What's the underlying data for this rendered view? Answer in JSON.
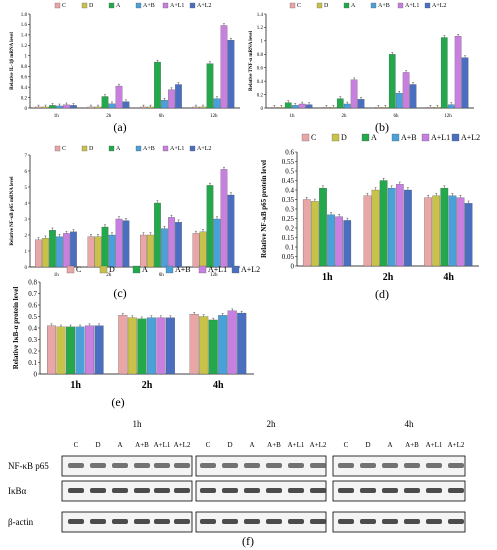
{
  "colors": {
    "C": "#e8a6a6",
    "D": "#c9c24a",
    "A": "#23a84c",
    "A+B": "#4aa0d8",
    "A+L1": "#c880e0",
    "A+L2": "#4a6fc0",
    "annot_black": "#000000",
    "annot_red": "#e02020"
  },
  "legend_labels": [
    "C",
    "D",
    "A",
    "A+B",
    "A+L1",
    "A+L2"
  ],
  "panel_labels": [
    "(a)",
    "(b)",
    "(c)",
    "(d)",
    "(e)",
    "(f)"
  ],
  "chart_data": [
    {
      "id": "a",
      "type": "bar",
      "ylabel": "Relative IL-1β mRNA level",
      "categories": [
        "1h",
        "2h",
        "6h",
        "12h"
      ],
      "ylim": [
        0,
        1.8
      ],
      "yticks": [
        0,
        0.2,
        0.4,
        0.6,
        0.8,
        1.0,
        1.2,
        1.4,
        1.6,
        1.8
      ],
      "series": [
        {
          "name": "C",
          "values": [
            0.02,
            0.02,
            0.02,
            0.02
          ]
        },
        {
          "name": "D",
          "values": [
            0.02,
            0.02,
            0.02,
            0.02
          ]
        },
        {
          "name": "A",
          "values": [
            0.05,
            0.22,
            0.88,
            0.85
          ]
        },
        {
          "name": "A+B",
          "values": [
            0.04,
            0.08,
            0.15,
            0.18
          ]
        },
        {
          "name": "A+L1",
          "values": [
            0.06,
            0.42,
            0.35,
            1.58
          ]
        },
        {
          "name": "A+L2",
          "values": [
            0.05,
            0.12,
            0.45,
            1.3
          ]
        }
      ]
    },
    {
      "id": "b",
      "type": "bar",
      "ylabel": "Relative TNF-α mRNA level",
      "categories": [
        "1h",
        "2h",
        "6h",
        "12h"
      ],
      "ylim": [
        0,
        1.4
      ],
      "yticks": [
        0,
        0.2,
        0.4,
        0.6,
        0.8,
        1.0,
        1.2,
        1.4
      ],
      "series": [
        {
          "name": "C",
          "values": [
            0.01,
            0.01,
            0.01,
            0.01
          ]
        },
        {
          "name": "D",
          "values": [
            0.01,
            0.01,
            0.01,
            0.01
          ]
        },
        {
          "name": "A",
          "values": [
            0.08,
            0.14,
            0.8,
            1.05
          ]
        },
        {
          "name": "A+B",
          "values": [
            0.04,
            0.06,
            0.22,
            0.05
          ]
        },
        {
          "name": "A+L1",
          "values": [
            0.06,
            0.42,
            0.53,
            1.07
          ]
        },
        {
          "name": "A+L2",
          "values": [
            0.05,
            0.13,
            0.35,
            0.75
          ]
        }
      ]
    },
    {
      "id": "c",
      "type": "bar",
      "ylabel": "Relative NF-κB p65 mRNA level",
      "categories": [
        "1h",
        "2h",
        "6h",
        "12h"
      ],
      "ylim": [
        0,
        7
      ],
      "yticks": [
        0,
        1,
        2,
        3,
        4,
        5,
        6,
        7
      ],
      "series": [
        {
          "name": "C",
          "values": [
            1.7,
            1.9,
            2.0,
            2.1
          ]
        },
        {
          "name": "D",
          "values": [
            1.8,
            1.9,
            2.0,
            2.2
          ]
        },
        {
          "name": "A",
          "values": [
            2.3,
            2.5,
            4.0,
            5.1
          ]
        },
        {
          "name": "A+B",
          "values": [
            1.9,
            2.0,
            2.4,
            3.0
          ]
        },
        {
          "name": "A+L1",
          "values": [
            2.1,
            3.0,
            3.1,
            6.1
          ]
        },
        {
          "name": "A+L2",
          "values": [
            2.2,
            2.9,
            2.8,
            4.5
          ]
        }
      ]
    },
    {
      "id": "d",
      "type": "bar",
      "ylabel": "Relative NF-κB p65 protein level",
      "categories": [
        "1h",
        "2h",
        "4h"
      ],
      "ylim": [
        0,
        0.6
      ],
      "yticks": [
        0,
        0.05,
        0.1,
        0.15,
        0.2,
        0.25,
        0.3,
        0.35,
        0.4,
        0.45,
        0.5,
        0.55,
        0.6
      ],
      "series": [
        {
          "name": "C",
          "values": [
            0.35,
            0.37,
            0.36
          ]
        },
        {
          "name": "D",
          "values": [
            0.34,
            0.4,
            0.37
          ]
        },
        {
          "name": "A",
          "values": [
            0.41,
            0.45,
            0.41
          ]
        },
        {
          "name": "A+B",
          "values": [
            0.27,
            0.41,
            0.37
          ]
        },
        {
          "name": "A+L1",
          "values": [
            0.26,
            0.43,
            0.36
          ]
        },
        {
          "name": "A+L2",
          "values": [
            0.24,
            0.4,
            0.33
          ]
        }
      ]
    },
    {
      "id": "e",
      "type": "bar",
      "ylabel": "Relative IκB-α protein level",
      "categories": [
        "1h",
        "2h",
        "4h"
      ],
      "ylim": [
        0,
        0.8
      ],
      "yticks": [
        0,
        0.1,
        0.2,
        0.3,
        0.4,
        0.5,
        0.6,
        0.7,
        0.8
      ],
      "series": [
        {
          "name": "C",
          "values": [
            0.42,
            0.51,
            0.52
          ]
        },
        {
          "name": "D",
          "values": [
            0.41,
            0.49,
            0.5
          ]
        },
        {
          "name": "A",
          "values": [
            0.41,
            0.48,
            0.47
          ]
        },
        {
          "name": "A+B",
          "values": [
            0.41,
            0.49,
            0.51
          ]
        },
        {
          "name": "A+L1",
          "values": [
            0.42,
            0.49,
            0.55
          ]
        },
        {
          "name": "A+L2",
          "values": [
            0.42,
            0.49,
            0.53
          ]
        }
      ]
    }
  ],
  "blot": {
    "time_labels": [
      "1h",
      "2h",
      "4h"
    ],
    "lane_labels": [
      "C",
      "D",
      "A",
      "A+B",
      "A+L1",
      "A+L2"
    ],
    "rows": [
      "NF-κB p65",
      "IκBα",
      "β-actin"
    ]
  }
}
